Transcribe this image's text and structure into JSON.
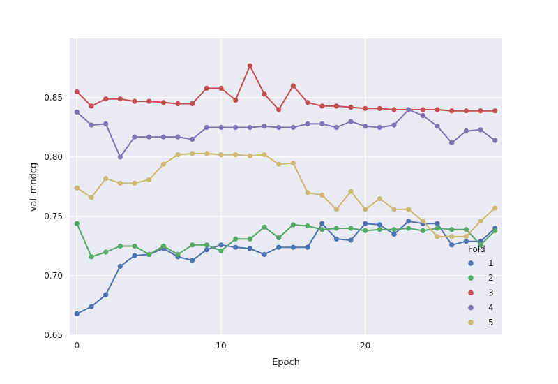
{
  "chart_data": {
    "type": "line",
    "xlabel": "Epoch",
    "ylabel": "val_mndcg",
    "xlim": [
      -0.5,
      29.5
    ],
    "ylim": [
      0.65,
      0.9
    ],
    "xticks": [
      0,
      10,
      20
    ],
    "xtick_labels": [
      "0",
      "10",
      "20"
    ],
    "yticks": [
      0.65,
      0.7,
      0.75,
      0.8,
      0.85
    ],
    "ytick_labels": [
      "0.65",
      "0.70",
      "0.75",
      "0.80",
      "0.85"
    ],
    "grid": true,
    "legend": {
      "title": "Fold",
      "placement": "lower-right"
    },
    "x": [
      0,
      1,
      2,
      3,
      4,
      5,
      6,
      7,
      8,
      9,
      10,
      11,
      12,
      13,
      14,
      15,
      16,
      17,
      18,
      19,
      20,
      21,
      22,
      23,
      24,
      25,
      26,
      27,
      28,
      29
    ],
    "series": [
      {
        "name": "1",
        "color": "#4c72b0",
        "values": [
          0.668,
          0.674,
          0.684,
          0.708,
          0.717,
          0.718,
          0.723,
          0.716,
          0.713,
          0.722,
          0.726,
          0.724,
          0.723,
          0.718,
          0.724,
          0.724,
          0.724,
          0.744,
          0.731,
          0.73,
          0.744,
          0.743,
          0.735,
          0.746,
          0.744,
          0.744,
          0.726,
          0.729,
          0.729,
          0.74
        ]
      },
      {
        "name": "2",
        "color": "#55a868",
        "values": [
          0.744,
          0.716,
          0.72,
          0.725,
          0.725,
          0.718,
          0.725,
          0.718,
          0.726,
          0.726,
          0.721,
          0.731,
          0.731,
          0.741,
          0.732,
          0.743,
          0.742,
          0.739,
          0.74,
          0.74,
          0.738,
          0.739,
          0.739,
          0.74,
          0.738,
          0.74,
          0.739,
          0.739,
          0.726,
          0.738
        ]
      },
      {
        "name": "3",
        "color": "#c44e52",
        "values": [
          0.855,
          0.843,
          0.849,
          0.849,
          0.847,
          0.847,
          0.846,
          0.845,
          0.845,
          0.858,
          0.858,
          0.848,
          0.877,
          0.853,
          0.84,
          0.86,
          0.846,
          0.843,
          0.843,
          0.842,
          0.841,
          0.841,
          0.84,
          0.84,
          0.84,
          0.84,
          0.839,
          0.839,
          0.839,
          0.839
        ]
      },
      {
        "name": "4",
        "color": "#8172b2",
        "values": [
          0.838,
          0.827,
          0.828,
          0.8,
          0.817,
          0.817,
          0.817,
          0.817,
          0.815,
          0.825,
          0.825,
          0.825,
          0.825,
          0.826,
          0.825,
          0.825,
          0.828,
          0.828,
          0.825,
          0.83,
          0.826,
          0.825,
          0.827,
          0.84,
          0.835,
          0.826,
          0.812,
          0.822,
          0.823,
          0.814
        ]
      },
      {
        "name": "5",
        "color": "#ccb974",
        "values": [
          0.774,
          0.766,
          0.782,
          0.778,
          0.778,
          0.781,
          0.794,
          0.802,
          0.803,
          0.803,
          0.802,
          0.802,
          0.801,
          0.802,
          0.794,
          0.795,
          0.77,
          0.768,
          0.756,
          0.771,
          0.756,
          0.765,
          0.756,
          0.756,
          0.746,
          0.733,
          0.733,
          0.733,
          0.746,
          0.757
        ]
      }
    ]
  }
}
